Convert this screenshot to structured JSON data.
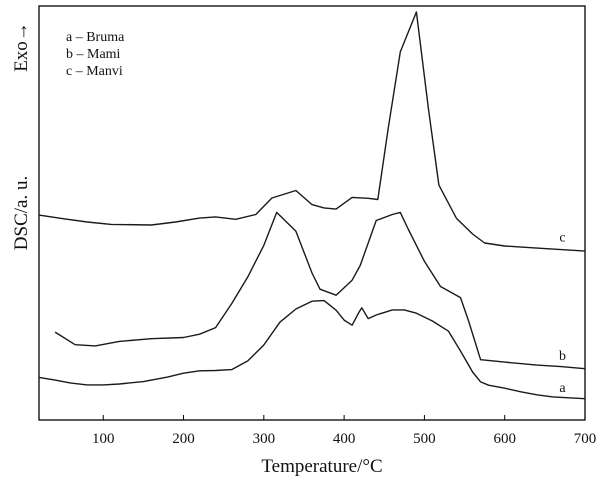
{
  "chart_data": {
    "type": "line",
    "title": "",
    "xlabel": "Temperature/°C",
    "ylabel": "DSC/a. u.",
    "exo_label": "Exo→",
    "xlim": [
      20,
      700
    ],
    "xticks": [
      100,
      200,
      300,
      400,
      500,
      600,
      700
    ],
    "y_tick_labels": false,
    "grid": false,
    "legend_position": "top-left",
    "legend": [
      "a – Bruma",
      "b – Mami",
      "c – Manvi"
    ],
    "series": [
      {
        "name": "a",
        "color": "#1a1a1a",
        "points": [
          [
            20,
            14.2
          ],
          [
            40,
            13.3
          ],
          [
            60,
            12.3
          ],
          [
            80,
            11.7
          ],
          [
            100,
            11.7
          ],
          [
            120,
            12.0
          ],
          [
            150,
            12.8
          ],
          [
            180,
            14.3
          ],
          [
            200,
            15.6
          ],
          [
            220,
            16.4
          ],
          [
            240,
            16.5
          ],
          [
            260,
            16.8
          ],
          [
            280,
            19.7
          ],
          [
            300,
            25.0
          ],
          [
            320,
            32.6
          ],
          [
            340,
            37.0
          ],
          [
            360,
            39.6
          ],
          [
            375,
            39.8
          ],
          [
            390,
            36.6
          ],
          [
            400,
            33.3
          ],
          [
            410,
            31.6
          ],
          [
            418,
            35.7
          ],
          [
            422,
            37.4
          ],
          [
            430,
            33.8
          ],
          [
            440,
            35.0
          ],
          [
            460,
            36.7
          ],
          [
            475,
            36.7
          ],
          [
            490,
            35.6
          ],
          [
            510,
            33.0
          ],
          [
            530,
            29.6
          ],
          [
            545,
            23.0
          ],
          [
            560,
            16.0
          ],
          [
            570,
            12.7
          ],
          [
            580,
            11.6
          ],
          [
            600,
            10.6
          ],
          [
            620,
            9.4
          ],
          [
            640,
            8.4
          ],
          [
            660,
            7.7
          ],
          [
            680,
            7.4
          ],
          [
            700,
            7.1
          ]
        ]
      },
      {
        "name": "b",
        "color": "#1a1a1a",
        "points": [
          [
            40,
            29.3
          ],
          [
            65,
            25.1
          ],
          [
            90,
            24.7
          ],
          [
            120,
            26.2
          ],
          [
            160,
            27.1
          ],
          [
            200,
            27.5
          ],
          [
            220,
            28.6
          ],
          [
            240,
            30.8
          ],
          [
            260,
            38.8
          ],
          [
            280,
            47.7
          ],
          [
            300,
            58.2
          ],
          [
            316,
            69.2
          ],
          [
            340,
            62.9
          ],
          [
            360,
            49.0
          ],
          [
            370,
            43.6
          ],
          [
            390,
            41.6
          ],
          [
            410,
            46.6
          ],
          [
            420,
            51.5
          ],
          [
            440,
            66.5
          ],
          [
            460,
            68.5
          ],
          [
            470,
            69.2
          ],
          [
            480,
            63.5
          ],
          [
            500,
            52.9
          ],
          [
            520,
            44.5
          ],
          [
            545,
            40.8
          ],
          [
            555,
            33.0
          ],
          [
            570,
            20.1
          ],
          [
            600,
            19.3
          ],
          [
            640,
            18.3
          ],
          [
            670,
            17.8
          ],
          [
            700,
            17.1
          ]
        ]
      },
      {
        "name": "c",
        "color": "#1a1a1a",
        "points": [
          [
            20,
            68.3
          ],
          [
            50,
            67.1
          ],
          [
            80,
            66.0
          ],
          [
            110,
            65.2
          ],
          [
            160,
            65.0
          ],
          [
            190,
            66.0
          ],
          [
            220,
            67.3
          ],
          [
            240,
            67.7
          ],
          [
            265,
            66.9
          ],
          [
            290,
            68.5
          ],
          [
            310,
            74.0
          ],
          [
            340,
            76.5
          ],
          [
            360,
            71.8
          ],
          [
            375,
            70.7
          ],
          [
            390,
            70.3
          ],
          [
            410,
            74.2
          ],
          [
            430,
            73.9
          ],
          [
            442,
            73.5
          ],
          [
            455,
            97.4
          ],
          [
            470,
            122.7
          ],
          [
            490,
            136.0
          ],
          [
            505,
            103.8
          ],
          [
            518,
            78.3
          ],
          [
            540,
            67.2
          ],
          [
            560,
            62.0
          ],
          [
            575,
            59.0
          ],
          [
            600,
            58.0
          ],
          [
            640,
            57.3
          ],
          [
            670,
            56.8
          ],
          [
            700,
            56.3
          ]
        ]
      }
    ],
    "annotations": [
      {
        "text": "c",
        "x": 672,
        "y": 59.5
      },
      {
        "text": "b",
        "x": 672,
        "y": 20.0
      },
      {
        "text": "a",
        "x": 672,
        "y": 9.4
      }
    ]
  }
}
